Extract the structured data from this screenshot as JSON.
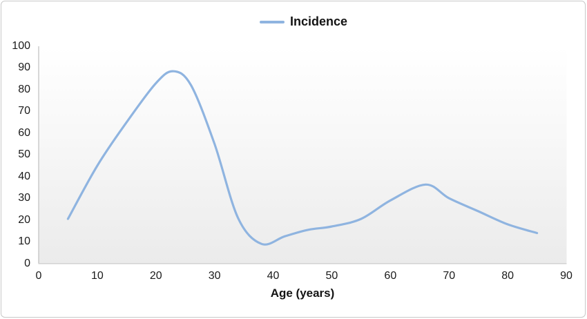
{
  "figure": {
    "background": "#ffffff",
    "border_color": "#c8c8c8"
  },
  "legend": {
    "label": "Incidence",
    "swatch_color": "#8fb4e0",
    "position": "top-center"
  },
  "axes": {
    "x_title": "Age (years)",
    "y_title": ""
  },
  "chart_data": {
    "type": "line",
    "title": "",
    "xlabel": "Age (years)",
    "ylabel": "",
    "xlim": [
      0,
      90
    ],
    "ylim": [
      0,
      100
    ],
    "x_ticks": [
      0,
      10,
      20,
      30,
      40,
      50,
      60,
      70,
      80,
      90
    ],
    "y_ticks": [
      0,
      10,
      20,
      30,
      40,
      50,
      60,
      70,
      80,
      90,
      100
    ],
    "grid": false,
    "legend_position": "top-center",
    "line_color": "#8fb4e0",
    "plot_bg_gradient": [
      "#ffffff",
      "#ebebeb"
    ],
    "series": [
      {
        "name": "Incidence",
        "smooth": true,
        "color": "#8fb4e0",
        "points": [
          [
            5,
            20.5
          ],
          [
            10,
            45
          ],
          [
            15,
            65
          ],
          [
            20,
            83
          ],
          [
            23,
            88.5
          ],
          [
            26,
            82
          ],
          [
            30,
            55
          ],
          [
            34,
            21
          ],
          [
            38,
            9
          ],
          [
            42,
            12.5
          ],
          [
            46,
            15.5
          ],
          [
            50,
            17
          ],
          [
            55,
            20.5
          ],
          [
            60,
            29
          ],
          [
            66,
            36.3
          ],
          [
            70,
            30
          ],
          [
            75,
            24
          ],
          [
            80,
            18
          ],
          [
            85,
            14
          ]
        ]
      }
    ]
  }
}
